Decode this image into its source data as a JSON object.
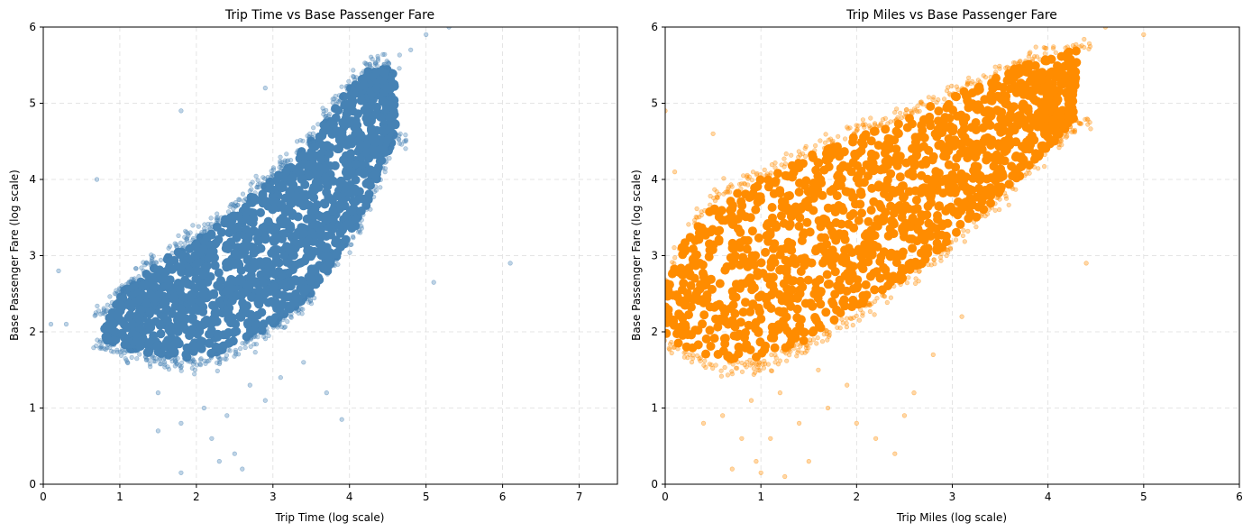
{
  "chart_data": [
    {
      "type": "scatter",
      "title": "Trip Time vs Base Passenger Fare",
      "xlabel": "Trip Time (log scale)",
      "ylabel": "Base Passenger Fare (log scale)",
      "xlim": [
        0,
        7.5
      ],
      "ylim": [
        0,
        6
      ],
      "xticks": [
        "0",
        "1",
        "2",
        "3",
        "4",
        "5",
        "6",
        "7"
      ],
      "yticks": [
        "0",
        "1",
        "2",
        "3",
        "4",
        "5",
        "6"
      ],
      "grid": true,
      "color": "#4682b4",
      "density_band": {
        "x": [
          0.8,
          1.0,
          1.5,
          2.0,
          2.5,
          3.0,
          3.5,
          4.0,
          4.2,
          4.4,
          4.6
        ],
        "y_low": [
          1.9,
          1.8,
          1.7,
          1.65,
          1.8,
          2.1,
          2.5,
          3.2,
          3.6,
          4.1,
          4.6
        ],
        "y_high": [
          2.2,
          2.5,
          2.9,
          3.2,
          3.6,
          4.0,
          4.5,
          5.2,
          5.4,
          5.5,
          5.4
        ]
      },
      "outliers": [
        {
          "x": 1.1,
          "y": 1.6
        },
        {
          "x": 1.5,
          "y": 1.2
        },
        {
          "x": 1.8,
          "y": 0.8
        },
        {
          "x": 2.1,
          "y": 1.0
        },
        {
          "x": 2.2,
          "y": 0.6
        },
        {
          "x": 2.4,
          "y": 0.9
        },
        {
          "x": 2.5,
          "y": 0.4
        },
        {
          "x": 2.6,
          "y": 0.2
        },
        {
          "x": 2.7,
          "y": 1.3
        },
        {
          "x": 2.9,
          "y": 1.1
        },
        {
          "x": 3.1,
          "y": 1.4
        },
        {
          "x": 3.4,
          "y": 1.6
        },
        {
          "x": 3.7,
          "y": 1.2
        },
        {
          "x": 3.9,
          "y": 0.85
        },
        {
          "x": 1.5,
          "y": 0.7
        },
        {
          "x": 1.8,
          "y": 0.15
        },
        {
          "x": 2.3,
          "y": 0.3
        },
        {
          "x": 0.1,
          "y": 2.1
        },
        {
          "x": 0.2,
          "y": 2.8
        },
        {
          "x": 0.3,
          "y": 2.1
        },
        {
          "x": 0.7,
          "y": 4.0
        },
        {
          "x": 1.8,
          "y": 4.9
        },
        {
          "x": 2.9,
          "y": 5.2
        },
        {
          "x": 5.1,
          "y": 2.65
        },
        {
          "x": 6.1,
          "y": 2.9
        },
        {
          "x": 5.0,
          "y": 5.9
        },
        {
          "x": 5.3,
          "y": 6.0
        },
        {
          "x": 4.8,
          "y": 5.7
        }
      ]
    },
    {
      "type": "scatter",
      "title": "Trip Miles vs Base Passenger Fare",
      "xlabel": "Trip Miles (log scale)",
      "ylabel": "Base Passenger Fare (log scale)",
      "xlim": [
        0,
        6
      ],
      "ylim": [
        0,
        6
      ],
      "xticks": [
        "0",
        "1",
        "2",
        "3",
        "4",
        "5",
        "6"
      ],
      "yticks": [
        "0",
        "1",
        "2",
        "3",
        "4",
        "5",
        "6"
      ],
      "grid": true,
      "color": "#ff8c00",
      "density_band": {
        "x": [
          0.0,
          0.2,
          0.5,
          1.0,
          1.5,
          2.0,
          2.5,
          3.0,
          3.5,
          4.0,
          4.3
        ],
        "y_low": [
          1.9,
          1.8,
          1.6,
          1.65,
          1.9,
          2.3,
          2.7,
          3.2,
          3.8,
          4.4,
          4.8
        ],
        "y_high": [
          2.6,
          3.2,
          3.7,
          4.0,
          4.3,
          4.6,
          4.8,
          5.1,
          5.4,
          5.6,
          5.7
        ]
      },
      "outliers": [
        {
          "x": 0.4,
          "y": 0.8
        },
        {
          "x": 0.6,
          "y": 0.9
        },
        {
          "x": 0.7,
          "y": 0.2
        },
        {
          "x": 0.8,
          "y": 0.6
        },
        {
          "x": 0.9,
          "y": 1.1
        },
        {
          "x": 0.95,
          "y": 0.3
        },
        {
          "x": 1.0,
          "y": 0.15
        },
        {
          "x": 1.1,
          "y": 0.6
        },
        {
          "x": 1.2,
          "y": 1.2
        },
        {
          "x": 1.25,
          "y": 0.1
        },
        {
          "x": 1.4,
          "y": 0.8
        },
        {
          "x": 1.5,
          "y": 0.3
        },
        {
          "x": 1.6,
          "y": 1.5
        },
        {
          "x": 1.7,
          "y": 1.0
        },
        {
          "x": 1.9,
          "y": 1.3
        },
        {
          "x": 2.0,
          "y": 0.8
        },
        {
          "x": 2.2,
          "y": 0.6
        },
        {
          "x": 2.4,
          "y": 0.4
        },
        {
          "x": 2.5,
          "y": 0.9
        },
        {
          "x": 2.6,
          "y": 1.2
        },
        {
          "x": 2.8,
          "y": 1.7
        },
        {
          "x": 0.0,
          "y": 4.9
        },
        {
          "x": 0.1,
          "y": 4.1
        },
        {
          "x": 3.1,
          "y": 2.2
        },
        {
          "x": 4.4,
          "y": 2.9
        },
        {
          "x": 4.6,
          "y": 6.0
        },
        {
          "x": 5.0,
          "y": 5.9
        },
        {
          "x": 0.5,
          "y": 4.6
        }
      ]
    }
  ]
}
